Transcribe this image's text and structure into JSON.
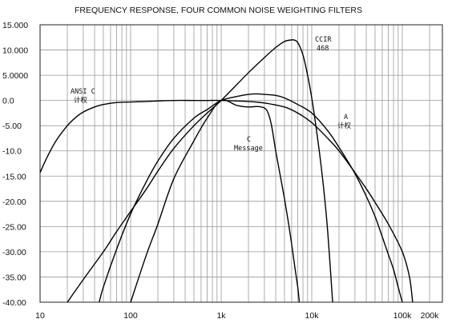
{
  "chart_data": {
    "type": "line",
    "title": "FREQUENCY RESPONSE, FOUR COMMON NOISE WEIGHTING FILTERS",
    "xscale": "log",
    "xlim": [
      10,
      200000
    ],
    "ylim": [
      -40,
      15
    ],
    "grid": true,
    "yticks": [
      "15.000",
      "10.000",
      "5.0000",
      "0.0",
      "-5.00",
      "-10.0",
      "-15.00",
      "-20.00",
      "-25.00",
      "-30.00",
      "-35.00",
      "-40.00"
    ],
    "ytick_values": [
      15,
      10,
      5,
      0,
      -5,
      -10,
      -15,
      -20,
      -25,
      -30,
      -35,
      -40
    ],
    "xticks": [
      "10",
      "100",
      "1k",
      "10k",
      "100k",
      "200k"
    ],
    "xtick_values": [
      10,
      100,
      1000,
      10000,
      100000,
      200000
    ],
    "series": [
      {
        "name": "ANSI C 计权",
        "label_lines": [
          "ANSI C",
          "计权"
        ],
        "x": [
          10,
          12,
          15,
          20,
          25,
          30,
          40,
          50,
          70,
          100,
          150,
          200,
          300,
          500,
          700,
          1000,
          2000,
          3000,
          5000,
          7000,
          10000,
          15000,
          20000,
          30000,
          40000,
          50000,
          70000,
          100000,
          120000,
          130000
        ],
        "y": [
          -14.3,
          -11.2,
          -8.0,
          -5.0,
          -3.3,
          -2.3,
          -1.3,
          -0.8,
          -0.4,
          -0.3,
          -0.2,
          -0.1,
          0.0,
          0.0,
          0.0,
          0.0,
          -0.2,
          -0.5,
          -1.3,
          -2.5,
          -4.4,
          -7.5,
          -10.0,
          -14.3,
          -17.5,
          -20.2,
          -24.5,
          -30.0,
          -35.0,
          -40.0
        ]
      },
      {
        "name": "A 计权",
        "label_lines": [
          "A",
          "计权"
        ],
        "x": [
          45,
          50,
          70,
          100,
          150,
          200,
          300,
          500,
          700,
          1000,
          1500,
          2000,
          2500,
          3000,
          4000,
          5000,
          7000,
          10000,
          15000,
          20000,
          30000,
          40000,
          50000,
          60000,
          70000,
          80000,
          90000,
          100000
        ],
        "y": [
          -40.0,
          -37.0,
          -29.5,
          -22.5,
          -16.0,
          -12.0,
          -7.5,
          -3.5,
          -1.8,
          0.0,
          0.8,
          1.2,
          1.3,
          1.2,
          1.0,
          0.5,
          -0.8,
          -2.5,
          -6.0,
          -9.3,
          -14.5,
          -19.0,
          -23.0,
          -27.0,
          -30.5,
          -33.5,
          -37.0,
          -40.0
        ]
      },
      {
        "name": "C Message",
        "label_lines": [
          "C",
          "Message"
        ],
        "x": [
          100,
          150,
          200,
          300,
          500,
          700,
          1000,
          1500,
          2000,
          2500,
          3000,
          3300,
          3600,
          4000,
          4500,
          5000,
          5500,
          6000,
          6500,
          7000,
          7300
        ],
        "y": [
          -40.0,
          -30.5,
          -24.5,
          -15.5,
          -8.0,
          -3.5,
          0.0,
          -1.0,
          -1.3,
          -1.2,
          -1.5,
          -2.5,
          -5.0,
          -10.0,
          -15.0,
          -19.5,
          -24.0,
          -28.5,
          -33.0,
          -37.0,
          -40.0
        ]
      },
      {
        "name": "CCIR 468",
        "label_lines": [
          "CCIR",
          "468"
        ],
        "x": [
          20,
          30,
          50,
          70,
          100,
          150,
          200,
          300,
          500,
          700,
          1000,
          2000,
          3000,
          4000,
          5000,
          6000,
          6300,
          7000,
          8000,
          9000,
          10000,
          11000,
          12500,
          14000,
          15000,
          16000,
          17000
        ],
        "y": [
          -40.0,
          -35.5,
          -30.0,
          -26.0,
          -22.0,
          -17.5,
          -14.0,
          -9.5,
          -5.0,
          -2.5,
          0.0,
          5.5,
          8.5,
          10.5,
          11.7,
          12.0,
          12.0,
          11.5,
          9.0,
          5.0,
          0.5,
          -4.5,
          -12.0,
          -20.0,
          -26.0,
          -33.0,
          -40.0
        ]
      }
    ]
  }
}
